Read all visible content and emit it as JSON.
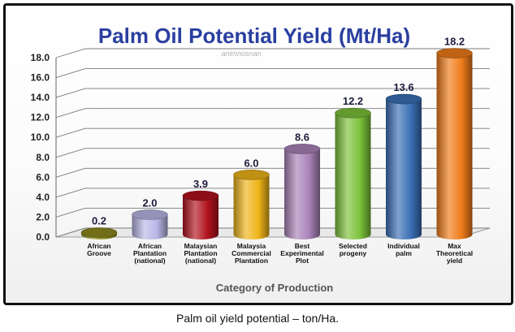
{
  "chart_data": {
    "type": "bar",
    "title": "Palm Oil Potential Yield (Mt/Ha)",
    "watermark": "animnosnan",
    "xlabel": "Category of Production",
    "ylabel": "",
    "ylim": [
      0,
      18
    ],
    "yticks": [
      "0.0",
      "2.0",
      "4.0",
      "6.0",
      "8.0",
      "10.0",
      "12.0",
      "14.0",
      "16.0",
      "18.0"
    ],
    "grid": true,
    "categories": [
      [
        "African",
        "Groove"
      ],
      [
        "African",
        "Plantation",
        "(national)"
      ],
      [
        "Malaysian",
        "Plantation",
        "(national)"
      ],
      [
        "Malaysia",
        "Commercial",
        "Plantation"
      ],
      [
        "Best",
        "Experimental",
        "Plot"
      ],
      [
        "Selected",
        "progeny"
      ],
      [
        "Individual",
        "palm"
      ],
      [
        "Max",
        "Theoretical",
        "yield"
      ]
    ],
    "values": [
      0.2,
      2.0,
      3.9,
      6.0,
      8.6,
      12.2,
      13.6,
      18.2
    ],
    "value_labels": [
      "0.2",
      "2.0",
      "3.9",
      "6.0",
      "8.6",
      "12.2",
      "13.6",
      "18.2"
    ],
    "colors": [
      "#8e8a1e",
      "#b9b6e6",
      "#b0121d",
      "#eeb418",
      "#a982b8",
      "#7cc23a",
      "#3a6fb5",
      "#f07c1a"
    ],
    "title_color": "#2a3fa0",
    "xlabel_color": "#555555"
  },
  "caption": "Palm oil yield potential – ton/Ha."
}
